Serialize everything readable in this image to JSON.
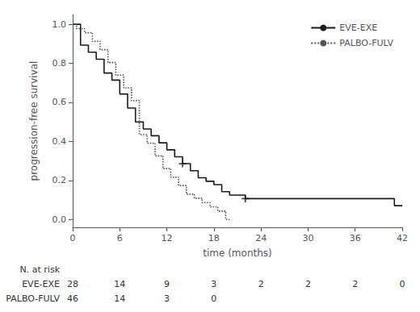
{
  "chart_data": {
    "type": "step",
    "xlabel": "time (months)",
    "ylabel": "progression-free survival",
    "xlim": [
      0,
      42
    ],
    "ylim": [
      -0.04,
      1.05
    ],
    "xticks": [
      0,
      6,
      12,
      18,
      24,
      30,
      36,
      42
    ],
    "yticks": [
      {
        "value": 0.0,
        "label": "0.0"
      },
      0.2,
      0.4,
      0.6,
      0.8,
      {
        "value": 1.0,
        "label": "1.0"
      }
    ],
    "grid": false,
    "legend": "upper right",
    "series": [
      {
        "name": "EVE-EXE",
        "color": "#1a1a1a",
        "line_style": "solid",
        "x": [
          0,
          1,
          1,
          2,
          3,
          4,
          5,
          6,
          7,
          8,
          9,
          10,
          11,
          12,
          13,
          14,
          15,
          16,
          17,
          18,
          19,
          20,
          21,
          22,
          38,
          39,
          41,
          42
        ],
        "values": [
          1.0,
          1.0,
          0.893,
          0.857,
          0.821,
          0.75,
          0.714,
          0.643,
          0.571,
          0.5,
          0.464,
          0.429,
          0.393,
          0.357,
          0.321,
          0.286,
          0.25,
          0.214,
          0.196,
          0.179,
          0.143,
          0.125,
          0.125,
          0.107,
          0.107,
          0.107,
          0.071,
          0.071
        ]
      },
      {
        "name": "PALBO-FULV",
        "color": "#555555",
        "line_style": "dotted",
        "x": [
          0,
          0.5,
          1,
          1.5,
          2,
          2.5,
          3,
          3.5,
          4,
          4.5,
          5,
          5.5,
          6,
          6.5,
          7,
          7.5,
          8,
          8.5,
          9,
          9.5,
          10,
          10.5,
          11,
          11.5,
          12,
          12.5,
          13,
          13.5,
          14,
          14.5,
          15,
          15.5,
          16,
          16.5,
          17,
          17.5,
          18,
          18.5,
          19,
          19.5,
          20
        ],
        "values": [
          1.0,
          0.978,
          0.978,
          0.957,
          0.957,
          0.913,
          0.913,
          0.87,
          0.87,
          0.804,
          0.804,
          0.739,
          0.739,
          0.674,
          0.674,
          0.609,
          0.609,
          0.435,
          0.435,
          0.391,
          0.391,
          0.326,
          0.326,
          0.261,
          0.261,
          0.217,
          0.217,
          0.174,
          0.174,
          0.13,
          0.13,
          0.109,
          0.109,
          0.087,
          0.087,
          0.065,
          0.065,
          0.043,
          0.043,
          0.0,
          0.0
        ]
      },
      {
        "type": "scatter",
        "marker": "plus",
        "color": "#1a1a1a",
        "x": [
          14,
          22
        ],
        "values": [
          0.286,
          0.107
        ]
      }
    ],
    "at_risk": {
      "label": "N. at risk",
      "x": [
        0,
        6,
        12,
        18,
        24,
        30,
        36,
        42
      ],
      "rows": [
        {
          "name": "EVE-EXE",
          "values": [
            28,
            14,
            9,
            3,
            2,
            2,
            2,
            0
          ]
        },
        {
          "name": "PALBO-FULV",
          "values": [
            46,
            14,
            3,
            0,
            null,
            null,
            null,
            null
          ]
        }
      ]
    }
  }
}
